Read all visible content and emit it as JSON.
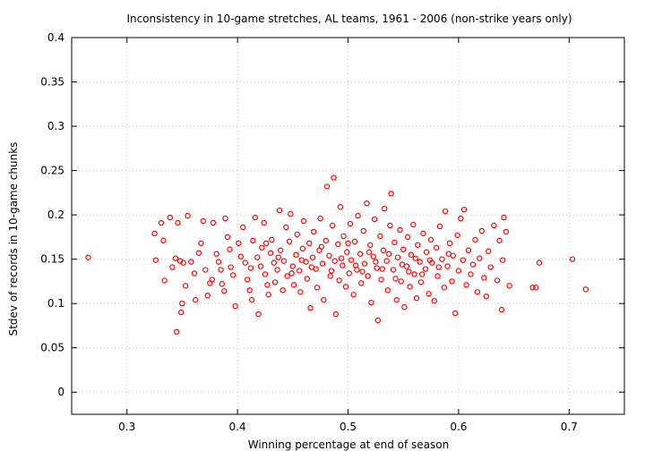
{
  "chart_data": {
    "type": "scatter",
    "title": "Inconsistency in 10-game stretches, AL teams, 1961 - 2006 (non-strike years only)",
    "xlabel": "Winning percentage at end of season",
    "ylabel": "Stdev of records in 10-game chunks",
    "xlim": [
      0.25,
      0.75
    ],
    "ylim": [
      -0.025,
      0.4
    ],
    "xticks": [
      "0.3",
      "0.4",
      "0.5",
      "0.6",
      "0.7"
    ],
    "yticks": [
      "0",
      "0.05",
      "0.1",
      "0.15",
      "0.2",
      "0.25",
      "0.3",
      "0.35",
      "0.4"
    ],
    "grid": true,
    "legend": "none",
    "marker_color": "#ff0000",
    "series": [
      {
        "points": [
          [
            0.265,
            0.152
          ],
          [
            0.325,
            0.179
          ],
          [
            0.326,
            0.149
          ],
          [
            0.331,
            0.191
          ],
          [
            0.333,
            0.171
          ],
          [
            0.334,
            0.126
          ],
          [
            0.339,
            0.197
          ],
          [
            0.341,
            0.141
          ],
          [
            0.344,
            0.151
          ],
          [
            0.345,
            0.068
          ],
          [
            0.346,
            0.191
          ],
          [
            0.348,
            0.148
          ],
          [
            0.349,
            0.09
          ],
          [
            0.35,
            0.1
          ],
          [
            0.351,
            0.146
          ],
          [
            0.353,
            0.12
          ],
          [
            0.355,
            0.199
          ],
          [
            0.358,
            0.147
          ],
          [
            0.361,
            0.134
          ],
          [
            0.362,
            0.104
          ],
          [
            0.365,
            0.157
          ],
          [
            0.367,
            0.168
          ],
          [
            0.369,
            0.193
          ],
          [
            0.371,
            0.138
          ],
          [
            0.373,
            0.109
          ],
          [
            0.375,
            0.123
          ],
          [
            0.377,
            0.127
          ],
          [
            0.378,
            0.191
          ],
          [
            0.381,
            0.156
          ],
          [
            0.383,
            0.147
          ],
          [
            0.385,
            0.138
          ],
          [
            0.386,
            0.122
          ],
          [
            0.388,
            0.114
          ],
          [
            0.389,
            0.196
          ],
          [
            0.391,
            0.175
          ],
          [
            0.393,
            0.161
          ],
          [
            0.394,
            0.141
          ],
          [
            0.396,
            0.132
          ],
          [
            0.398,
            0.097
          ],
          [
            0.401,
            0.168
          ],
          [
            0.403,
            0.153
          ],
          [
            0.405,
            0.186
          ],
          [
            0.407,
            0.146
          ],
          [
            0.409,
            0.127
          ],
          [
            0.411,
            0.115
          ],
          [
            0.413,
            0.104
          ],
          [
            0.414,
            0.171
          ],
          [
            0.416,
            0.197
          ],
          [
            0.418,
            0.152
          ],
          [
            0.419,
            0.088
          ],
          [
            0.421,
            0.142
          ],
          [
            0.422,
            0.163
          ],
          [
            0.424,
            0.191
          ],
          [
            0.425,
            0.133
          ],
          [
            0.427,
            0.121
          ],
          [
            0.428,
            0.11
          ],
          [
            0.43,
            0.157
          ],
          [
            0.431,
            0.172
          ],
          [
            0.433,
            0.146
          ],
          [
            0.434,
            0.124
          ],
          [
            0.436,
            0.138
          ],
          [
            0.438,
            0.205
          ],
          [
            0.439,
            0.16
          ],
          [
            0.441,
            0.115
          ],
          [
            0.442,
            0.148
          ],
          [
            0.444,
            0.186
          ],
          [
            0.445,
            0.131
          ],
          [
            0.447,
            0.17
          ],
          [
            0.448,
            0.201
          ],
          [
            0.45,
            0.142
          ],
          [
            0.451,
            0.121
          ],
          [
            0.453,
            0.155
          ],
          [
            0.454,
            0.178
          ],
          [
            0.456,
            0.137
          ],
          [
            0.457,
            0.113
          ],
          [
            0.459,
            0.162
          ],
          [
            0.46,
            0.193
          ],
          [
            0.462,
            0.147
          ],
          [
            0.463,
            0.128
          ],
          [
            0.465,
            0.168
          ],
          [
            0.466,
            0.095
          ],
          [
            0.468,
            0.152
          ],
          [
            0.469,
            0.181
          ],
          [
            0.471,
            0.139
          ],
          [
            0.472,
            0.118
          ],
          [
            0.474,
            0.16
          ],
          [
            0.475,
            0.196
          ],
          [
            0.477,
            0.145
          ],
          [
            0.478,
            0.104
          ],
          [
            0.48,
            0.171
          ],
          [
            0.481,
            0.232
          ],
          [
            0.483,
            0.154
          ],
          [
            0.484,
            0.131
          ],
          [
            0.486,
            0.188
          ],
          [
            0.487,
            0.242
          ],
          [
            0.488,
            0.148
          ],
          [
            0.489,
            0.088
          ],
          [
            0.491,
            0.167
          ],
          [
            0.492,
            0.126
          ],
          [
            0.493,
            0.209
          ],
          [
            0.495,
            0.143
          ],
          [
            0.496,
            0.176
          ],
          [
            0.498,
            0.119
          ],
          [
            0.499,
            0.158
          ],
          [
            0.501,
            0.134
          ],
          [
            0.502,
            0.19
          ],
          [
            0.503,
            0.149
          ],
          [
            0.505,
            0.11
          ],
          [
            0.506,
            0.17
          ],
          [
            0.508,
            0.138
          ],
          [
            0.509,
            0.199
          ],
          [
            0.511,
            0.156
          ],
          [
            0.512,
            0.123
          ],
          [
            0.514,
            0.182
          ],
          [
            0.515,
            0.145
          ],
          [
            0.517,
            0.213
          ],
          [
            0.518,
            0.131
          ],
          [
            0.52,
            0.166
          ],
          [
            0.521,
            0.101
          ],
          [
            0.523,
            0.153
          ],
          [
            0.524,
            0.195
          ],
          [
            0.526,
            0.14
          ],
          [
            0.527,
            0.081
          ],
          [
            0.529,
            0.176
          ],
          [
            0.53,
            0.127
          ],
          [
            0.532,
            0.16
          ],
          [
            0.533,
            0.207
          ],
          [
            0.535,
            0.148
          ],
          [
            0.536,
            0.115
          ],
          [
            0.538,
            0.188
          ],
          [
            0.539,
            0.224
          ],
          [
            0.541,
            0.138
          ],
          [
            0.542,
            0.169
          ],
          [
            0.544,
            0.104
          ],
          [
            0.545,
            0.152
          ],
          [
            0.547,
            0.183
          ],
          [
            0.548,
            0.125
          ],
          [
            0.55,
            0.161
          ],
          [
            0.551,
            0.096
          ],
          [
            0.553,
            0.142
          ],
          [
            0.554,
            0.175
          ],
          [
            0.556,
            0.119
          ],
          [
            0.557,
            0.155
          ],
          [
            0.559,
            0.189
          ],
          [
            0.56,
            0.133
          ],
          [
            0.562,
            0.106
          ],
          [
            0.563,
            0.166
          ],
          [
            0.565,
            0.147
          ],
          [
            0.566,
            0.124
          ],
          [
            0.568,
            0.179
          ],
          [
            0.57,
            0.139
          ],
          [
            0.571,
            0.158
          ],
          [
            0.573,
            0.111
          ],
          [
            0.575,
            0.172
          ],
          [
            0.576,
            0.146
          ],
          [
            0.578,
            0.103
          ],
          [
            0.58,
            0.163
          ],
          [
            0.581,
            0.131
          ],
          [
            0.583,
            0.187
          ],
          [
            0.585,
            0.15
          ],
          [
            0.587,
            0.118
          ],
          [
            0.588,
            0.204
          ],
          [
            0.59,
            0.142
          ],
          [
            0.592,
            0.168
          ],
          [
            0.594,
            0.125
          ],
          [
            0.595,
            0.154
          ],
          [
            0.597,
            0.089
          ],
          [
            0.599,
            0.177
          ],
          [
            0.6,
            0.137
          ],
          [
            0.602,
            0.196
          ],
          [
            0.604,
            0.149
          ],
          [
            0.605,
            0.206
          ],
          [
            0.607,
            0.121
          ],
          [
            0.609,
            0.16
          ],
          [
            0.611,
            0.133
          ],
          [
            0.613,
            0.144
          ],
          [
            0.615,
            0.172
          ],
          [
            0.617,
            0.113
          ],
          [
            0.619,
            0.151
          ],
          [
            0.621,
            0.182
          ],
          [
            0.623,
            0.129
          ],
          [
            0.625,
            0.108
          ],
          [
            0.627,
            0.159
          ],
          [
            0.629,
            0.141
          ],
          [
            0.632,
            0.188
          ],
          [
            0.635,
            0.126
          ],
          [
            0.637,
            0.171
          ],
          [
            0.639,
            0.093
          ],
          [
            0.64,
            0.149
          ],
          [
            0.641,
            0.197
          ],
          [
            0.643,
            0.181
          ],
          [
            0.646,
            0.12
          ],
          [
            0.667,
            0.118
          ],
          [
            0.67,
            0.118
          ],
          [
            0.673,
            0.146
          ],
          [
            0.703,
            0.15
          ],
          [
            0.715,
            0.116
          ],
          [
            0.412,
            0.14
          ],
          [
            0.426,
            0.168
          ],
          [
            0.437,
            0.152
          ],
          [
            0.449,
            0.134
          ],
          [
            0.458,
            0.149
          ],
          [
            0.467,
            0.141
          ],
          [
            0.476,
            0.164
          ],
          [
            0.485,
            0.137
          ],
          [
            0.494,
            0.151
          ],
          [
            0.5,
            0.168
          ],
          [
            0.507,
            0.143
          ],
          [
            0.513,
            0.136
          ],
          [
            0.519,
            0.158
          ],
          [
            0.525,
            0.147
          ],
          [
            0.531,
            0.139
          ],
          [
            0.537,
            0.156
          ],
          [
            0.543,
            0.128
          ],
          [
            0.549,
            0.144
          ],
          [
            0.555,
            0.136
          ],
          [
            0.561,
            0.151
          ],
          [
            0.567,
            0.133
          ],
          [
            0.574,
            0.149
          ],
          [
            0.582,
            0.141
          ],
          [
            0.591,
            0.156
          ]
        ]
      }
    ]
  }
}
